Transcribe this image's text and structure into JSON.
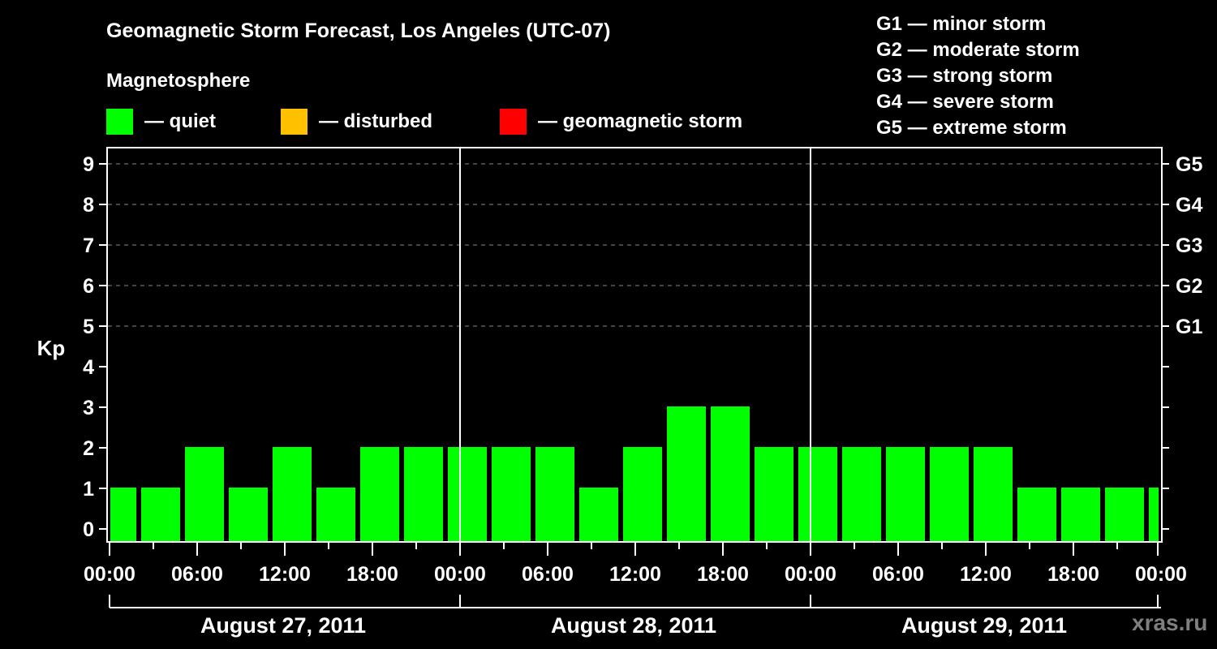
{
  "header": {
    "title": "Geomagnetic Storm Forecast, Los Angeles (UTC-07)",
    "subtitle": "Magnetosphere"
  },
  "legend": {
    "items": [
      {
        "label": "— quiet",
        "color": "#00ff00"
      },
      {
        "label": "— disturbed",
        "color": "#ffc000"
      },
      {
        "label": "— geomagnetic storm",
        "color": "#ff0000"
      }
    ]
  },
  "g_legend": [
    "G1 — minor storm",
    "G2 — moderate storm",
    "G3 — strong storm",
    "G4 — severe storm",
    "G5 — extreme storm"
  ],
  "watermark": "xras.ru",
  "chart_data": {
    "type": "bar",
    "title": "Geomagnetic Storm Forecast, Los Angeles (UTC-07)",
    "ylabel": "Kp",
    "xlabel": "",
    "ylim": [
      0,
      9
    ],
    "yticks": [
      0,
      1,
      2,
      3,
      4,
      5,
      6,
      7,
      8,
      9
    ],
    "right_axis_labels": [
      {
        "kp": 5,
        "label": "G1"
      },
      {
        "kp": 6,
        "label": "G2"
      },
      {
        "kp": 7,
        "label": "G3"
      },
      {
        "kp": 8,
        "label": "G4"
      },
      {
        "kp": 9,
        "label": "G5"
      }
    ],
    "grid": "dashed horizontal at Kp 5-9",
    "x_tick_labels": [
      "00:00",
      "06:00",
      "12:00",
      "18:00",
      "00:00",
      "06:00",
      "12:00",
      "18:00",
      "00:00",
      "06:00",
      "12:00",
      "18:00",
      "00:00"
    ],
    "date_labels": [
      "August 27, 2011",
      "August 28, 2011",
      "August 29, 2011"
    ],
    "interval_hours": 3,
    "categories": [
      "Aug 27 00:00",
      "Aug 27 03:00",
      "Aug 27 06:00",
      "Aug 27 09:00",
      "Aug 27 12:00",
      "Aug 27 15:00",
      "Aug 27 18:00",
      "Aug 27 21:00",
      "Aug 28 00:00",
      "Aug 28 03:00",
      "Aug 28 06:00",
      "Aug 28 09:00",
      "Aug 28 12:00",
      "Aug 28 15:00",
      "Aug 28 18:00",
      "Aug 28 21:00",
      "Aug 29 00:00",
      "Aug 29 03:00",
      "Aug 29 06:00",
      "Aug 29 09:00",
      "Aug 29 12:00",
      "Aug 29 15:00",
      "Aug 29 18:00",
      "Aug 29 21:00",
      "Aug 30 00:00"
    ],
    "values": [
      1,
      1,
      2,
      1,
      2,
      1,
      2,
      2,
      2,
      2,
      2,
      1,
      2,
      3,
      3,
      2,
      2,
      2,
      2,
      2,
      2,
      1,
      1,
      1,
      1
    ],
    "bar_color": "#00ff00"
  }
}
